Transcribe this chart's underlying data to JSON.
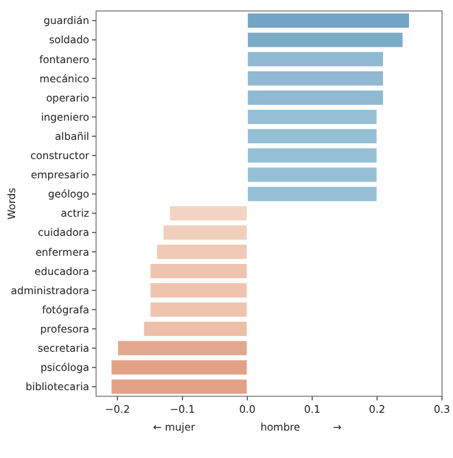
{
  "chart_data": {
    "type": "bar",
    "orientation": "horizontal",
    "ylabel": "Words",
    "xlabel": "← mujer                    hombre          →",
    "categories": [
      "guardián",
      "soldado",
      "fontanero",
      "mecánico",
      "operario",
      "ingeniero",
      "albañil",
      "constructor",
      "empresario",
      "geólogo",
      "actriz",
      "cuidadora",
      "enfermera",
      "educadora",
      "administradora",
      "fotógrafa",
      "profesora",
      "secretaria",
      "psicóloga",
      "bibliotecaria"
    ],
    "values": [
      0.25,
      0.24,
      0.21,
      0.21,
      0.21,
      0.2,
      0.2,
      0.2,
      0.2,
      0.2,
      -0.12,
      -0.13,
      -0.14,
      -0.15,
      -0.15,
      -0.15,
      -0.16,
      -0.2,
      -0.21,
      -0.21
    ],
    "colors": [
      "#71a5c6",
      "#7aabc7",
      "#8fbad1",
      "#8fbad1",
      "#8fbad1",
      "#95bfd5",
      "#95bfd5",
      "#95bfd5",
      "#95bfd5",
      "#95bfd5",
      "#f3d4c2",
      "#f2cfbb",
      "#f1cab5",
      "#efc4ae",
      "#efc4ae",
      "#efc4ae",
      "#edbfa7",
      "#e3a88f",
      "#e2a187",
      "#e2a187"
    ],
    "xlim": [
      -0.233,
      0.3
    ],
    "xticks": [
      {
        "value": -0.2,
        "label": "−0.2"
      },
      {
        "value": -0.1,
        "label": "−0.1"
      },
      {
        "value": 0,
        "label": "0.0"
      },
      {
        "value": 0.1,
        "label": "0.1"
      },
      {
        "value": 0.2,
        "label": "0.2"
      },
      {
        "value": 0.3,
        "label": "0.3"
      }
    ],
    "grid": false
  }
}
